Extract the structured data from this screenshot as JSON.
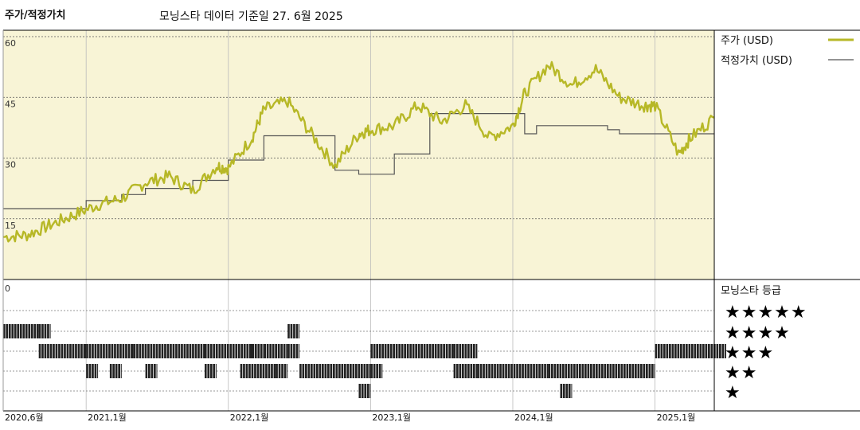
{
  "header": {
    "title": "주가/적정가치",
    "source": "모닝스타 데이터 기준일 27. 6월 2025"
  },
  "legend": {
    "price_label": "주가 (USD)",
    "fair_label": "적정가치 (USD)",
    "rating_title": "모닝스타 등급"
  },
  "colors": {
    "price": "#b7b827",
    "fair": "#555555",
    "panel_bg": "#f8f4d6"
  },
  "chart_data": {
    "type": "line",
    "x_range": [
      "2020-06",
      "2025-06"
    ],
    "x_ticks": [
      "2020,6월",
      "2021,1월",
      "2022,1월",
      "2023,1월",
      "2024,1월",
      "2025,1월"
    ],
    "ylim": [
      0,
      60
    ],
    "y_ticks": [
      60,
      45,
      30,
      15
    ],
    "lower_zero_label": "0",
    "series": [
      {
        "name": "주가 (USD)",
        "x": [
          "2020-06",
          "2020-08",
          "2020-10",
          "2020-12",
          "2021-02",
          "2021-04",
          "2021-06",
          "2021-08",
          "2021-10",
          "2021-12",
          "2022-01",
          "2022-03",
          "2022-04",
          "2022-06",
          "2022-08",
          "2022-10",
          "2022-12",
          "2023-01",
          "2023-03",
          "2023-05",
          "2023-07",
          "2023-09",
          "2023-11",
          "2024-01",
          "2024-02",
          "2024-04",
          "2024-06",
          "2024-08",
          "2024-10",
          "2024-12",
          "2025-01",
          "2025-03",
          "2025-04",
          "2025-06"
        ],
        "values": [
          10.5,
          11,
          13.5,
          16,
          18.5,
          20,
          24,
          25.5,
          22,
          28,
          27.5,
          35,
          42,
          44,
          36,
          28,
          36,
          37,
          38,
          43,
          39,
          43,
          35,
          38,
          46,
          53,
          48,
          52,
          45,
          43,
          43,
          31,
          35,
          40
        ]
      },
      {
        "name": "적정가치 (USD)",
        "x": [
          "2020-06",
          "2021-01",
          "2021-04",
          "2021-06",
          "2021-10",
          "2022-01",
          "2022-04",
          "2022-10",
          "2022-12",
          "2023-03",
          "2023-06",
          "2024-02",
          "2024-03",
          "2024-09",
          "2024-10",
          "2025-06"
        ],
        "values": [
          17.5,
          19.5,
          21,
          22.5,
          24.5,
          29.5,
          35.5,
          27,
          26,
          31,
          41,
          36,
          38,
          37,
          36,
          36
        ]
      }
    ],
    "ratings": {
      "levels": [
        "★★★★★",
        "★★★★",
        "★★★",
        "★★",
        "★"
      ],
      "bands": [
        [],
        [
          [
            "2020-06",
            "2020-08"
          ],
          [
            "2020-09",
            "2020-09"
          ],
          [
            "2022-06",
            "2022-06"
          ]
        ],
        [
          [
            "2020-09",
            "2020-12"
          ],
          [
            "2021-01",
            "2021-04"
          ],
          [
            "2021-05",
            "2021-10"
          ],
          [
            "2021-11",
            "2022-02"
          ],
          [
            "2022-03",
            "2022-03"
          ],
          [
            "2022-04",
            "2022-05"
          ],
          [
            "2022-06",
            "2022-06"
          ],
          [
            "2023-01",
            "2023-07"
          ],
          [
            "2023-08",
            "2023-09"
          ],
          [
            "2025-01",
            "2025-06"
          ]
        ],
        [
          [
            "2021-01",
            "2021-01"
          ],
          [
            "2021-03",
            "2021-03"
          ],
          [
            "2021-06",
            "2021-06"
          ],
          [
            "2021-11",
            "2021-11"
          ],
          [
            "2022-02",
            "2022-04"
          ],
          [
            "2022-05",
            "2022-05"
          ],
          [
            "2022-07",
            "2022-12"
          ],
          [
            "2023-01",
            "2023-01"
          ],
          [
            "2023-08",
            "2023-09"
          ],
          [
            "2023-10",
            "2024-03"
          ],
          [
            "2024-04",
            "2024-12"
          ]
        ],
        [
          [
            "2022-12",
            "2022-12"
          ],
          [
            "2024-05",
            "2024-05"
          ]
        ]
      ]
    }
  }
}
